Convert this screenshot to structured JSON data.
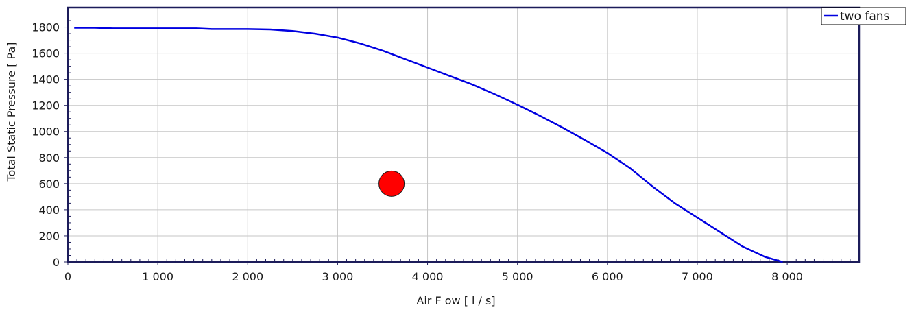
{
  "chart_data": {
    "type": "line",
    "xlabel": "Air F ow  [ l / s]",
    "ylabel": "Total Static Pressure  [ Pa]",
    "xlim": [
      0,
      8800
    ],
    "ylim": [
      0,
      1950
    ],
    "x_ticks": [
      0,
      1000,
      2000,
      3000,
      4000,
      5000,
      6000,
      7000,
      8000
    ],
    "x_tick_labels": [
      "0",
      "1 000",
      "2 000",
      "3 000",
      "4 000",
      "5 000",
      "6 000",
      "7 000",
      "8 000"
    ],
    "y_ticks": [
      0,
      200,
      400,
      600,
      800,
      1000,
      1200,
      1400,
      1600,
      1800
    ],
    "y_tick_labels": [
      "0",
      "200",
      "400",
      "600",
      "800",
      "1000",
      "1200",
      "1400",
      "1600",
      "1800"
    ],
    "grid": true,
    "legend_position": "top-right",
    "series": [
      {
        "name": "two fans",
        "color": "#0000e0",
        "x": [
          70,
          300,
          500,
          1000,
          1430,
          1600,
          2000,
          2250,
          2500,
          2750,
          3000,
          3250,
          3500,
          3750,
          4000,
          4250,
          4500,
          4750,
          5000,
          5250,
          5500,
          5750,
          6000,
          6250,
          6500,
          6750,
          7000,
          7250,
          7500,
          7750,
          7950
        ],
        "y": [
          1795,
          1795,
          1790,
          1790,
          1790,
          1785,
          1785,
          1782,
          1770,
          1750,
          1720,
          1675,
          1620,
          1555,
          1490,
          1425,
          1360,
          1285,
          1205,
          1120,
          1030,
          935,
          835,
          720,
          580,
          450,
          340,
          230,
          120,
          40,
          0
        ]
      }
    ],
    "points": [
      {
        "x": 3600,
        "y": 600,
        "color": "#ff0000"
      }
    ]
  }
}
